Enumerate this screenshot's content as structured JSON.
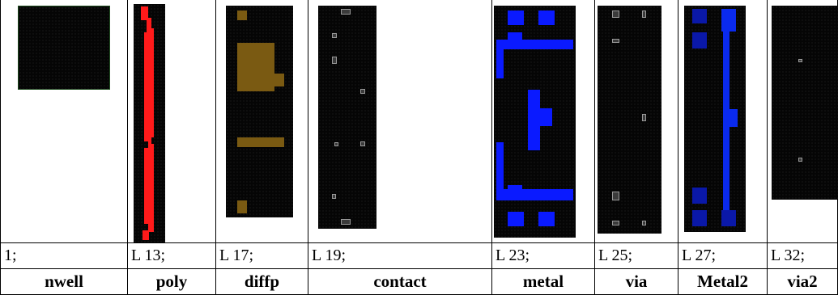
{
  "colors": {
    "nwell_border": "#1e4a1e",
    "poly": "#ff1a1a",
    "diffp": "#7a5a12",
    "metal": "#0a1aff",
    "metal2": "#0a2aee",
    "metal2_dark": "#0a18a8",
    "contact": "#8a8a8a"
  },
  "columns": [
    {
      "layer": "1;",
      "name": "nwell"
    },
    {
      "layer": "L 13;",
      "name": "poly"
    },
    {
      "layer": "L 17;",
      "name": "diffp"
    },
    {
      "layer": "L 19;",
      "name": "contact"
    },
    {
      "layer": "L 23;",
      "name": "metal"
    },
    {
      "layer": "L 25;",
      "name": "via"
    },
    {
      "layer": "L 27;",
      "name": "Metal2"
    },
    {
      "layer": "L 32;",
      "name": "via2"
    }
  ]
}
